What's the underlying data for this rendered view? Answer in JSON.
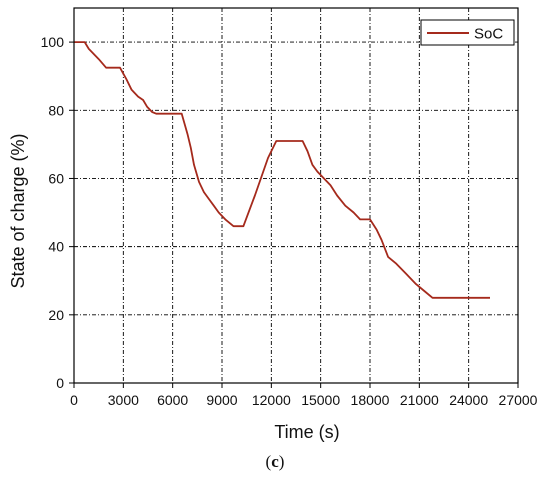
{
  "chart_data": {
    "type": "line",
    "xlabel": "Time (s)",
    "ylabel": "State of charge (%)",
    "xlim": [
      0,
      27000
    ],
    "ylim": [
      0,
      110
    ],
    "xticks": [
      0,
      3000,
      6000,
      9000,
      12000,
      15000,
      18000,
      21000,
      24000,
      27000
    ],
    "yticks": [
      0,
      20,
      40,
      60,
      80,
      100
    ],
    "grid": true,
    "legend_position": "top-right",
    "series": [
      {
        "name": "SoC",
        "color": "#a52a1c",
        "points": [
          [
            0,
            100
          ],
          [
            650,
            100
          ],
          [
            900,
            98
          ],
          [
            1500,
            95
          ],
          [
            1950,
            92.5
          ],
          [
            2800,
            92.5
          ],
          [
            3200,
            89
          ],
          [
            3500,
            86
          ],
          [
            3900,
            84
          ],
          [
            4200,
            83
          ],
          [
            4450,
            81
          ],
          [
            4750,
            79.5
          ],
          [
            5000,
            79
          ],
          [
            6300,
            79
          ],
          [
            6550,
            79
          ],
          [
            6900,
            73
          ],
          [
            7100,
            69
          ],
          [
            7300,
            64
          ],
          [
            7600,
            59
          ],
          [
            7900,
            56
          ],
          [
            8200,
            54
          ],
          [
            8500,
            52
          ],
          [
            8800,
            50
          ],
          [
            9200,
            48
          ],
          [
            9700,
            46
          ],
          [
            10300,
            46
          ],
          [
            11000,
            55
          ],
          [
            11800,
            66
          ],
          [
            12300,
            71
          ],
          [
            13900,
            71
          ],
          [
            14200,
            68
          ],
          [
            14500,
            64
          ],
          [
            14800,
            62
          ],
          [
            15200,
            60
          ],
          [
            15600,
            58
          ],
          [
            16000,
            55
          ],
          [
            16500,
            52
          ],
          [
            17000,
            50
          ],
          [
            17400,
            48
          ],
          [
            18000,
            48
          ],
          [
            18400,
            45
          ],
          [
            18700,
            42
          ],
          [
            19100,
            37
          ],
          [
            19600,
            35
          ],
          [
            20200,
            32
          ],
          [
            20800,
            29
          ],
          [
            21300,
            27
          ],
          [
            21800,
            25
          ],
          [
            25300,
            25
          ]
        ]
      }
    ],
    "caption": "(c)"
  }
}
